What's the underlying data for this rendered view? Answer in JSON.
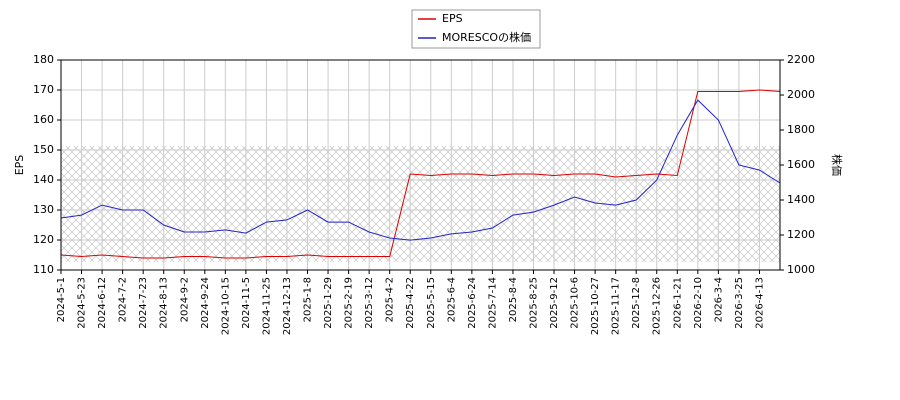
{
  "chart_data": {
    "type": "line",
    "x": [
      "2024-5-1",
      "2024-5-23",
      "2024-6-12",
      "2024-7-2",
      "2024-7-23",
      "2024-8-13",
      "2024-9-2",
      "2024-9-24",
      "2024-10-15",
      "2024-11-5",
      "2024-11-25",
      "2024-12-13",
      "2025-1-8",
      "2025-1-29",
      "2025-2-19",
      "2025-3-12",
      "2025-4-2",
      "2025-4-22",
      "2025-5-15",
      "2025-6-4",
      "2025-6-24",
      "2025-7-14",
      "2025-8-4",
      "2025-8-25",
      "2025-9-12",
      "2025-10-6",
      "2025-10-27",
      "2025-11-17",
      "2025-12-8",
      "2025-12-26",
      "2026-1-21",
      "2026-2-10",
      "2026-3-4",
      "2026-3-25",
      "2026-4-13",
      null
    ],
    "ylabel": "EPS",
    "y2label": "株価",
    "ylim": [
      110,
      180
    ],
    "yticks": [
      110,
      120,
      130,
      140,
      150,
      160,
      170,
      180
    ],
    "y2lim": [
      1000,
      2200
    ],
    "y2ticks": [
      1000,
      1200,
      1400,
      1600,
      1800,
      2000,
      2200
    ],
    "grid": true,
    "legend": "top",
    "series": [
      {
        "name": "EPS",
        "color": "#dd0000",
        "values": [
          115,
          114.5,
          115,
          114.5,
          114,
          114,
          114.5,
          114.5,
          114,
          114,
          114.5,
          114.5,
          115,
          114.5,
          114.5,
          114.5,
          114.5,
          142,
          141.5,
          142,
          142,
          141.5,
          142,
          142,
          141.5,
          142,
          142,
          141,
          141.5,
          142,
          141.5,
          169.5,
          169.5,
          169.5,
          170,
          169.5
        ]
      },
      {
        "name": "MORESCOの株価",
        "color": "#2222cc",
        "axis": "y2",
        "values": [
          1297,
          1314,
          1371,
          1343,
          1343,
          1257,
          1217,
          1217,
          1229,
          1211,
          1274,
          1286,
          1343,
          1274,
          1274,
          1217,
          1183,
          1171,
          1183,
          1206,
          1217,
          1240,
          1314,
          1331,
          1371,
          1417,
          1383,
          1371,
          1400,
          1514,
          1771,
          1971,
          1857,
          1600,
          1571,
          1497
        ]
      }
    ]
  }
}
